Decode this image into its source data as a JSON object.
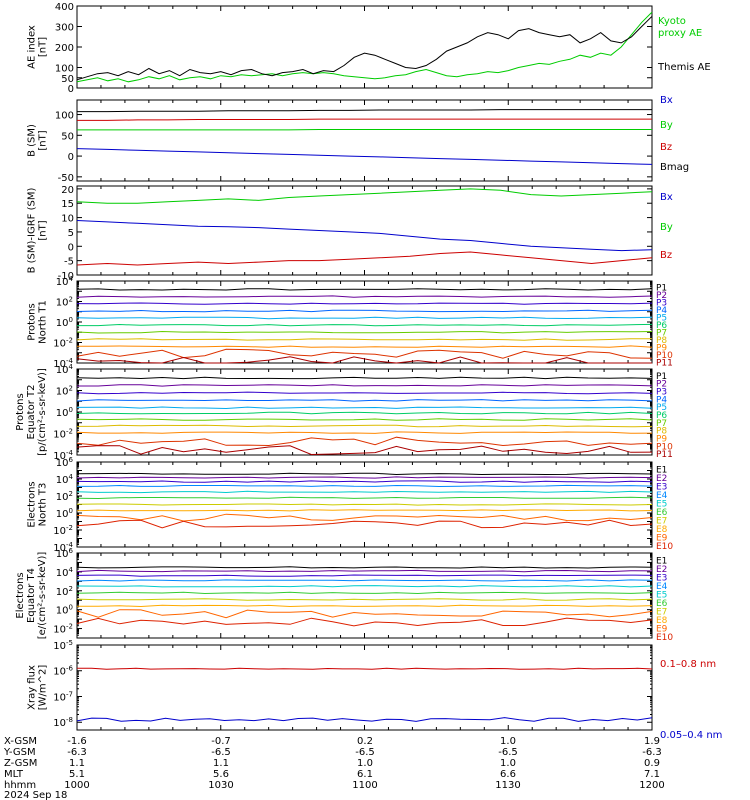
{
  "colors": {
    "black": "#000000",
    "green": "#00cc00",
    "red": "#cc0000",
    "blue": "#0000cc",
    "p_series": [
      "#000000",
      "#660099",
      "#3300cc",
      "#0066ff",
      "#00aaee",
      "#00cc66",
      "#66cc00",
      "#ddbb00",
      "#ff8800",
      "#dd3300",
      "#aa0000"
    ],
    "e_series": [
      "#000000",
      "#660099",
      "#3300cc",
      "#0088ff",
      "#00cccc",
      "#33cc33",
      "#cccc00",
      "#ffaa00",
      "#ff6600",
      "#dd2200",
      "#aa0000"
    ]
  },
  "chart_data": [
    {
      "id": "ae",
      "type": "line",
      "ylabel": "AE index\n[nT]",
      "ylim": [
        0,
        400
      ],
      "ticks": [
        "0",
        "50",
        "100",
        "200",
        "300",
        "400"
      ],
      "tick_values": [
        0,
        50,
        100,
        200,
        300,
        400
      ],
      "series": [
        {
          "name": "Kyoto\nproxy AE",
          "color": "#00cc00",
          "values": [
            30,
            40,
            50,
            35,
            45,
            30,
            40,
            55,
            45,
            60,
            40,
            50,
            55,
            45,
            60,
            55,
            65,
            60,
            65,
            70,
            60,
            70,
            75,
            70,
            75,
            70,
            60,
            55,
            50,
            45,
            50,
            60,
            65,
            80,
            90,
            75,
            60,
            55,
            65,
            70,
            80,
            75,
            85,
            100,
            110,
            120,
            115,
            130,
            140,
            160,
            150,
            170,
            160,
            200,
            260,
            320,
            370
          ]
        },
        {
          "name": "Themis AE",
          "color": "#000000",
          "values": [
            40,
            55,
            70,
            75,
            60,
            80,
            65,
            95,
            70,
            85,
            60,
            90,
            75,
            70,
            80,
            65,
            85,
            90,
            70,
            60,
            75,
            80,
            90,
            70,
            85,
            80,
            110,
            150,
            170,
            160,
            140,
            120,
            100,
            95,
            110,
            140,
            180,
            200,
            220,
            250,
            270,
            260,
            240,
            280,
            290,
            270,
            260,
            250,
            260,
            220,
            240,
            270,
            230,
            220,
            250,
            300,
            350
          ]
        }
      ]
    },
    {
      "id": "bsm",
      "type": "line",
      "ylabel": "B (SM)\n[nT]",
      "ylim": [
        -60,
        135
      ],
      "ticks": [
        "-50",
        "0",
        "50",
        "100"
      ],
      "tick_values": [
        -50,
        0,
        50,
        100
      ],
      "series": [
        {
          "name": "Bx",
          "color": "#0000cc",
          "values": [
            18,
            16,
            14,
            12,
            10,
            8,
            6,
            4,
            2,
            0,
            -2,
            -4,
            -6,
            -8,
            -10,
            -12,
            -14,
            -16,
            -18,
            -20
          ]
        },
        {
          "name": "By",
          "color": "#00cc00",
          "values": [
            63,
            63,
            63,
            63,
            63,
            63,
            63,
            63,
            64,
            64,
            64,
            64,
            64,
            64,
            64,
            64,
            64,
            64,
            64,
            64
          ]
        },
        {
          "name": "Bz",
          "color": "#cc0000",
          "values": [
            86,
            86,
            87,
            87,
            88,
            88,
            88,
            88,
            89,
            89,
            89,
            89,
            89,
            89,
            89,
            89,
            89,
            89,
            89,
            89
          ]
        },
        {
          "name": "Bmag",
          "color": "#000000",
          "values": [
            107,
            107,
            108,
            108,
            108,
            109,
            109,
            109,
            110,
            110,
            111,
            111,
            111,
            111,
            112,
            112,
            112,
            112,
            112,
            112
          ]
        }
      ]
    },
    {
      "id": "bigrf",
      "type": "line",
      "ylabel": "B (SM)-IGRF (SM)\n[nT]",
      "ylim": [
        -10,
        21
      ],
      "ticks": [
        "-10",
        "-5",
        "0",
        "5",
        "10",
        "15",
        "20"
      ],
      "tick_values": [
        -10,
        -5,
        0,
        5,
        10,
        15,
        20
      ],
      "series": [
        {
          "name": "Bx",
          "color": "#0000cc",
          "values": [
            9,
            8.5,
            8,
            7.5,
            7,
            6.8,
            6.5,
            6,
            5.5,
            5,
            4.5,
            3.5,
            2.5,
            2,
            1,
            0,
            -0.5,
            -1,
            -1.5,
            -1.2
          ]
        },
        {
          "name": "By",
          "color": "#00cc00",
          "values": [
            15.5,
            15,
            15,
            15.5,
            16,
            16.5,
            16,
            17,
            17.5,
            18,
            18.5,
            19,
            19.5,
            20,
            19.5,
            18,
            17.5,
            18,
            18.5,
            19
          ]
        },
        {
          "name": "Bz",
          "color": "#cc0000",
          "values": [
            -6.5,
            -6,
            -6.5,
            -6,
            -5.5,
            -6,
            -5.5,
            -5,
            -5,
            -4.5,
            -4,
            -3.5,
            -2.5,
            -2,
            -3,
            -4,
            -5,
            -6,
            -5,
            -4
          ]
        }
      ]
    },
    {
      "id": "pnt1",
      "type": "line",
      "log": true,
      "ylabel": "Protons\nNorth T1",
      "ylim": [
        0.0001,
        10000
      ],
      "tick_exps": [
        -4,
        -2,
        0,
        2,
        4
      ],
      "levels": [
        1500,
        300,
        60,
        12,
        2.5,
        0.5,
        0.1,
        0.02,
        0.004,
        0.0008,
        0.00015
      ],
      "series_names": [
        "P1",
        "P2",
        "P3",
        "P4",
        "P5",
        "P6",
        "P7",
        "P8",
        "P9",
        "P10",
        "P11"
      ]
    },
    {
      "id": "pet2",
      "type": "line",
      "log": true,
      "ylabel": "Protons\nEquator T2\n[p/(cm²-s-sr-keV)]",
      "ylim": [
        0.0001,
        10000
      ],
      "tick_exps": [
        -4,
        -2,
        0,
        2,
        4
      ],
      "levels": [
        1500,
        300,
        60,
        12,
        2.5,
        0.8,
        0.2,
        0.05,
        0.012,
        0.002,
        0.0003
      ],
      "series_names": [
        "P1",
        "P2",
        "P3",
        "P4",
        "P5",
        "P6",
        "P7",
        "P8",
        "P9",
        "P10",
        "P11"
      ]
    },
    {
      "id": "ent3",
      "type": "line",
      "log": true,
      "ylabel": "Electrons\nNorth T3",
      "ylim": [
        0.0001,
        1000000
      ],
      "tick_exps": [
        -4,
        -2,
        0,
        2,
        4,
        6
      ],
      "levels": [
        40000,
        15000,
        5000,
        1500,
        300,
        60,
        10,
        2,
        0.3,
        0.05
      ],
      "series_names": [
        "E1",
        "E2",
        "E3",
        "E4",
        "E5",
        "E6",
        "E7",
        "E8",
        "E9",
        "E10"
      ]
    },
    {
      "id": "eet4",
      "type": "line",
      "log": true,
      "ylabel": "Electrons\nEquator T4\n[e/(cm²-s-sr-keV)]",
      "ylim": [
        0.001,
        1000000
      ],
      "tick_exps": [
        -2,
        0,
        2,
        4,
        6
      ],
      "levels": [
        30000,
        12000,
        4000,
        1200,
        300,
        60,
        12,
        2.5,
        0.4,
        0.05
      ],
      "series_names": [
        "E1",
        "E2",
        "E3",
        "E4",
        "E5",
        "E6",
        "E7",
        "E8",
        "E9",
        "E10"
      ]
    },
    {
      "id": "xray",
      "type": "line",
      "log": true,
      "ylabel": "Xray flux\n[W/m^2]",
      "ylim": [
        5e-09,
        1e-05
      ],
      "tick_exps": [
        -8,
        -7,
        -6,
        -5
      ],
      "series": [
        {
          "name": "0.1–0.8 nm",
          "color": "#cc0000",
          "level": 1.2e-06
        },
        {
          "name": "0.05–0.4 nm",
          "color": "#0000cc",
          "level": 1.3e-08
        }
      ]
    }
  ],
  "axis_table": {
    "rows": [
      {
        "label": "X-GSM",
        "values": [
          "-1.6",
          "-0.7",
          "0.2",
          "1.0",
          "1.9"
        ]
      },
      {
        "label": "Y-GSM",
        "values": [
          "-6.3",
          "-6.5",
          "-6.5",
          "-6.5",
          "-6.3"
        ]
      },
      {
        "label": "Z-GSM",
        "values": [
          "1.1",
          "1.1",
          "1.0",
          "1.0",
          "0.9"
        ]
      },
      {
        "label": "MLT",
        "values": [
          "5.1",
          "5.6",
          "6.1",
          "6.6",
          "7.1"
        ]
      },
      {
        "label": "hhmm",
        "values": [
          "1000",
          "1030",
          "1100",
          "1130",
          "1200"
        ]
      }
    ],
    "date": "2024 Sep 18"
  }
}
